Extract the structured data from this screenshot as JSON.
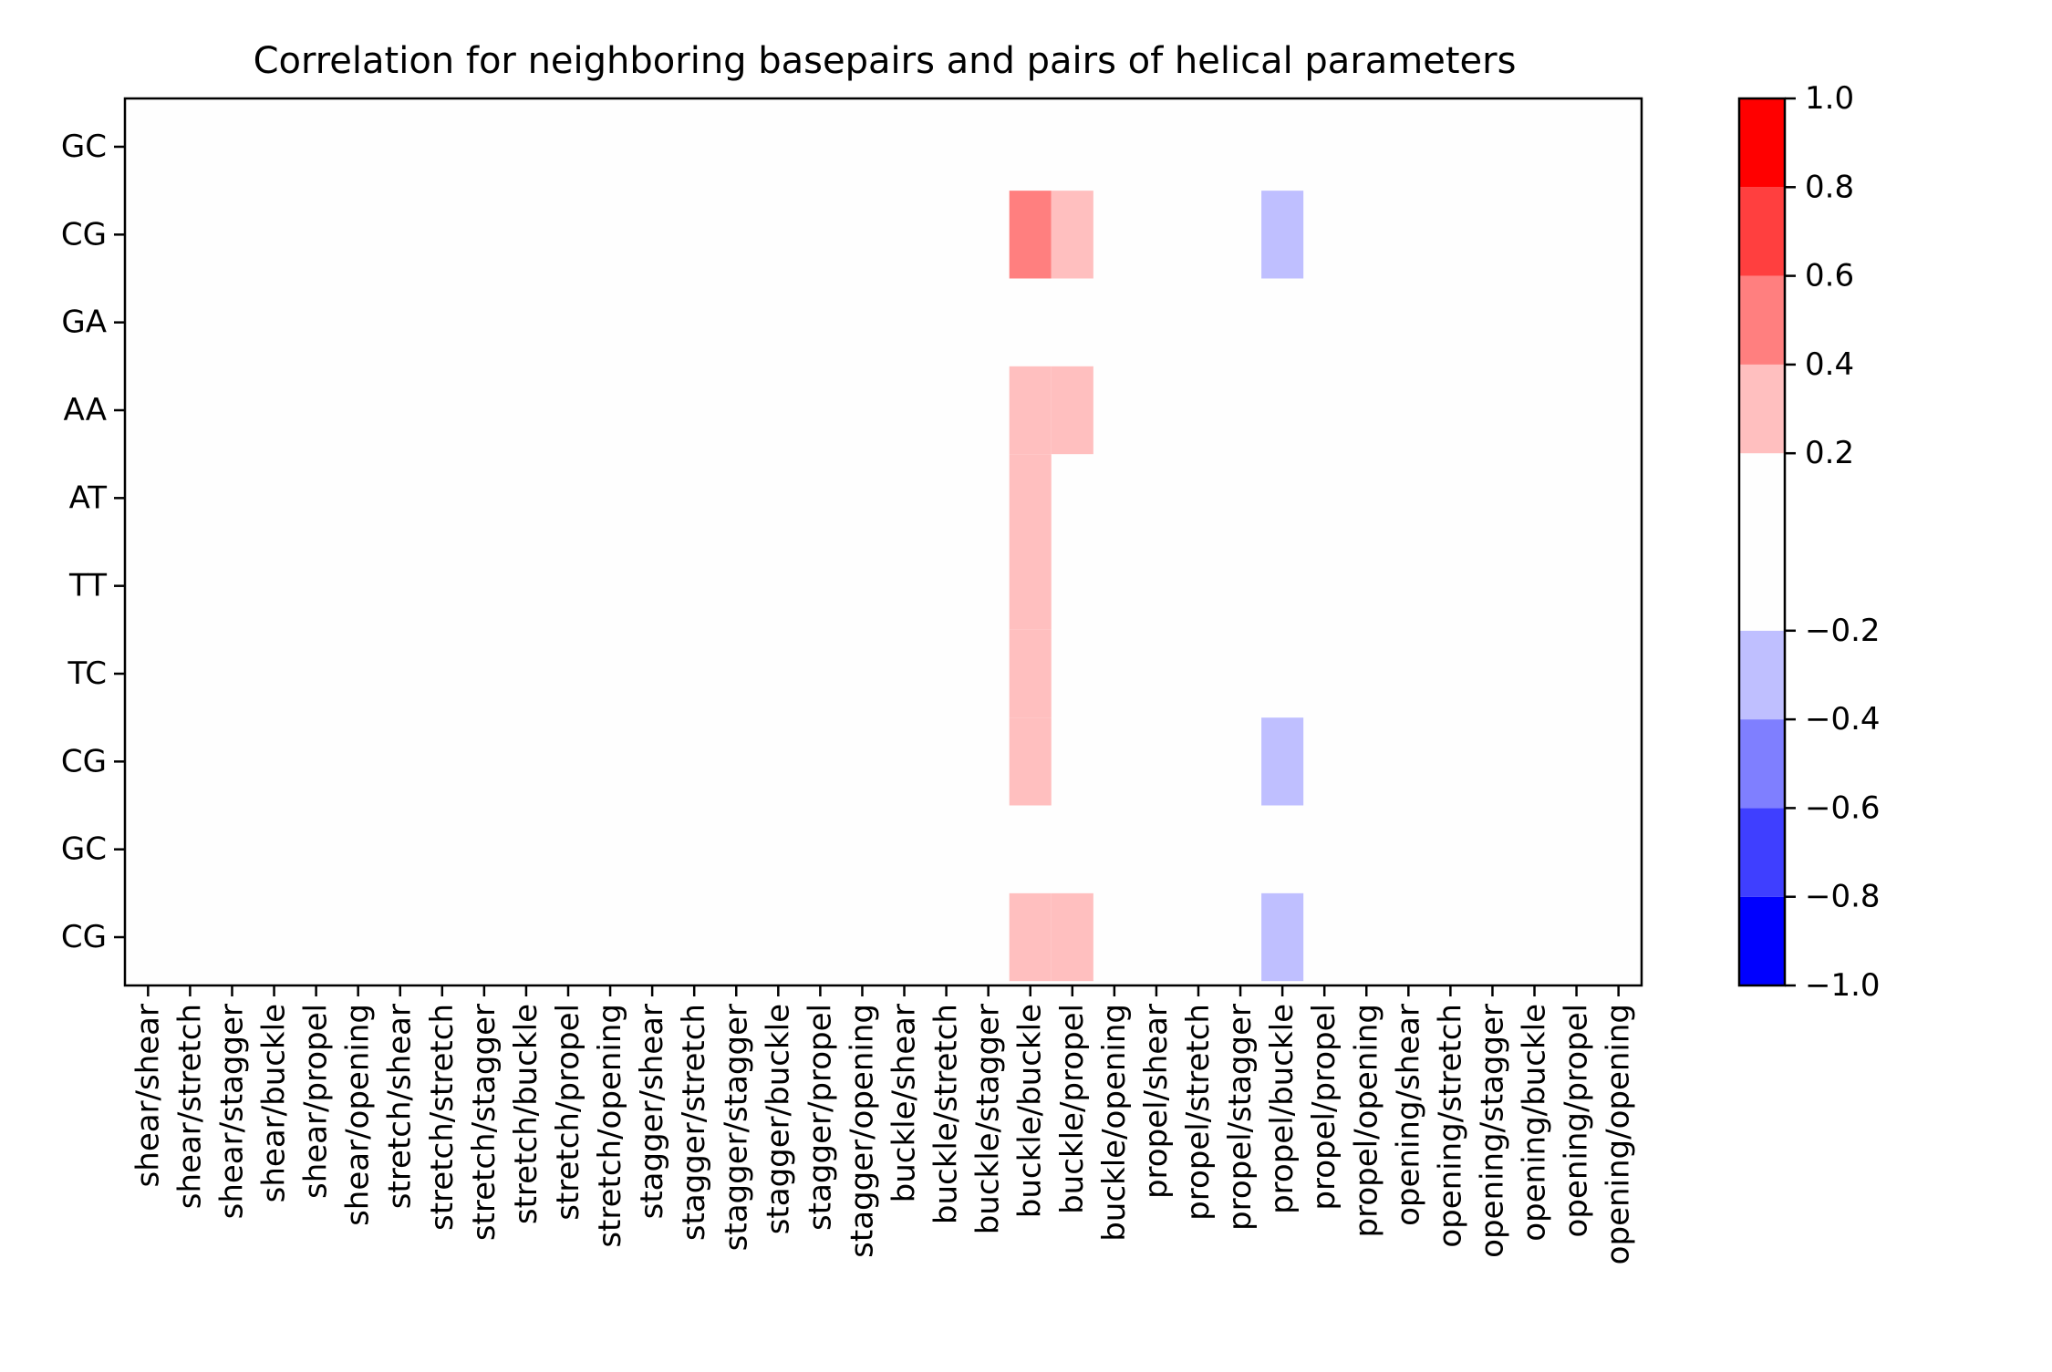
{
  "chart_data": {
    "type": "heatmap",
    "title": "Correlation for neighboring basepairs and pairs of helical parameters",
    "xlabel": "",
    "ylabel": "",
    "x_categories": [
      "shear/shear",
      "shear/stretch",
      "shear/stagger",
      "shear/buckle",
      "shear/propel",
      "shear/opening",
      "stretch/shear",
      "stretch/stretch",
      "stretch/stagger",
      "stretch/buckle",
      "stretch/propel",
      "stretch/opening",
      "stagger/shear",
      "stagger/stretch",
      "stagger/stagger",
      "stagger/buckle",
      "stagger/propel",
      "stagger/opening",
      "buckle/shear",
      "buckle/stretch",
      "buckle/stagger",
      "buckle/buckle",
      "buckle/propel",
      "buckle/opening",
      "propel/shear",
      "propel/stretch",
      "propel/stagger",
      "propel/buckle",
      "propel/propel",
      "propel/opening",
      "opening/shear",
      "opening/stretch",
      "opening/stagger",
      "opening/buckle",
      "opening/propel",
      "opening/opening"
    ],
    "y_categories": [
      "GC",
      "CG",
      "GA",
      "AA",
      "AT",
      "TT",
      "TC",
      "CG",
      "GC",
      "CG"
    ],
    "cells": [
      {
        "row": 1,
        "col": 21,
        "value": 0.5
      },
      {
        "row": 1,
        "col": 22,
        "value": 0.3
      },
      {
        "row": 1,
        "col": 27,
        "value": -0.3
      },
      {
        "row": 3,
        "col": 21,
        "value": 0.3
      },
      {
        "row": 3,
        "col": 22,
        "value": 0.3
      },
      {
        "row": 4,
        "col": 21,
        "value": 0.3
      },
      {
        "row": 5,
        "col": 21,
        "value": 0.3
      },
      {
        "row": 6,
        "col": 21,
        "value": 0.3
      },
      {
        "row": 7,
        "col": 21,
        "value": 0.3
      },
      {
        "row": 7,
        "col": 27,
        "value": -0.3
      },
      {
        "row": 9,
        "col": 21,
        "value": 0.3
      },
      {
        "row": 9,
        "col": 22,
        "value": 0.3
      },
      {
        "row": 9,
        "col": 27,
        "value": -0.3
      }
    ],
    "default_value": 0.0,
    "colorbar": {
      "range": [
        -1.0,
        1.0
      ],
      "boundaries": [
        -1.0,
        -0.8,
        -0.6,
        -0.4,
        -0.2,
        0.2,
        0.4,
        0.6,
        0.8,
        1.0
      ],
      "colors": [
        "#0000ff",
        "#3f3fff",
        "#7f7fff",
        "#bfbfff",
        "#fefefe",
        "#ffbfbf",
        "#ff7f7f",
        "#ff3f3f",
        "#ff0000"
      ],
      "tick_labels": [
        "−1.0",
        "−0.8",
        "−0.6",
        "−0.4",
        "−0.2",
        "0.2",
        "0.4",
        "0.6",
        "0.8",
        "1.0"
      ]
    },
    "grid": false
  }
}
